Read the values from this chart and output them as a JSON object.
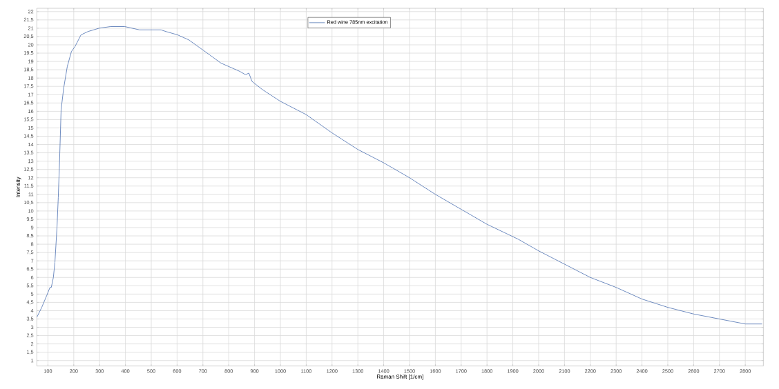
{
  "chart_data": {
    "type": "line",
    "xlabel": "Raman Shift [1/cm]",
    "ylabel": "Intensity",
    "x": [
      57,
      76,
      95,
      108,
      113,
      121,
      127,
      135,
      140,
      145,
      151,
      161,
      175,
      191,
      205,
      228,
      255,
      298,
      343,
      362,
      397,
      455,
      500,
      538,
      557,
      602,
      645,
      699,
      770,
      843,
      865,
      878,
      890,
      931,
      1000,
      1100,
      1200,
      1300,
      1400,
      1500,
      1600,
      1700,
      1800,
      1921,
      2000,
      2100,
      2200,
      2300,
      2400,
      2500,
      2600,
      2700,
      2800,
      2865
    ],
    "series": [
      {
        "name": "Red wine 785nm excitation",
        "color": "#4a6fb0",
        "values": [
          3.6,
          4.2,
          4.9,
          5.4,
          5.4,
          6.0,
          6.9,
          9.0,
          10.8,
          13.0,
          16.1,
          17.4,
          18.7,
          19.6,
          19.9,
          20.6,
          20.8,
          21.0,
          21.1,
          21.1,
          21.1,
          20.9,
          20.9,
          20.9,
          20.8,
          20.6,
          20.3,
          19.7,
          18.9,
          18.4,
          18.2,
          18.3,
          17.8,
          17.3,
          16.6,
          15.8,
          14.7,
          13.7,
          12.9,
          12.0,
          11.0,
          10.1,
          9.2,
          8.3,
          7.6,
          6.8,
          6.0,
          5.4,
          4.7,
          4.2,
          3.8,
          3.5,
          3.2,
          3.2
        ]
      }
    ],
    "xlim": [
      57,
      2870
    ],
    "ylim": [
      0.67,
      22.2
    ],
    "xticks": [
      100,
      200,
      300,
      400,
      500,
      600,
      700,
      800,
      900,
      1000,
      1100,
      1200,
      1300,
      1400,
      1500,
      1600,
      1700,
      1800,
      1900,
      2000,
      2100,
      2200,
      2300,
      2400,
      2500,
      2600,
      2700,
      2800
    ],
    "yticks": [
      1,
      {
        "value": 1.5,
        "label": "1,5"
      },
      2,
      {
        "value": 2.5,
        "label": "2,5"
      },
      3,
      {
        "value": 3.5,
        "label": "3,5"
      },
      4,
      {
        "value": 4.5,
        "label": "4,5"
      },
      5,
      {
        "value": 5.5,
        "label": "5,5"
      },
      6,
      {
        "value": 6.5,
        "label": "6,5"
      },
      7,
      {
        "value": 7.5,
        "label": "7,5"
      },
      8,
      {
        "value": 8.5,
        "label": "8,5"
      },
      9,
      {
        "value": 9.5,
        "label": "9,5"
      },
      10,
      {
        "value": 10.5,
        "label": "10,5"
      },
      11,
      {
        "value": 11.5,
        "label": "11,5"
      },
      12,
      {
        "value": 12.5,
        "label": "12,5"
      },
      13,
      {
        "value": 13.5,
        "label": "13,5"
      },
      14,
      {
        "value": 14.5,
        "label": "14,5"
      },
      15,
      {
        "value": 15.5,
        "label": "15,5"
      },
      16,
      {
        "value": 16.5,
        "label": "16,5"
      },
      17,
      {
        "value": 17.5,
        "label": "17,5"
      },
      18,
      {
        "value": 18.5,
        "label": "18,5"
      },
      19,
      {
        "value": 19.5,
        "label": "19,5"
      },
      20,
      {
        "value": 20.5,
        "label": "20,5"
      },
      21,
      {
        "value": 21.5,
        "label": "21,5"
      },
      22
    ],
    "grid": true,
    "legend": "top",
    "marker": "none",
    "line_style": "solid"
  }
}
